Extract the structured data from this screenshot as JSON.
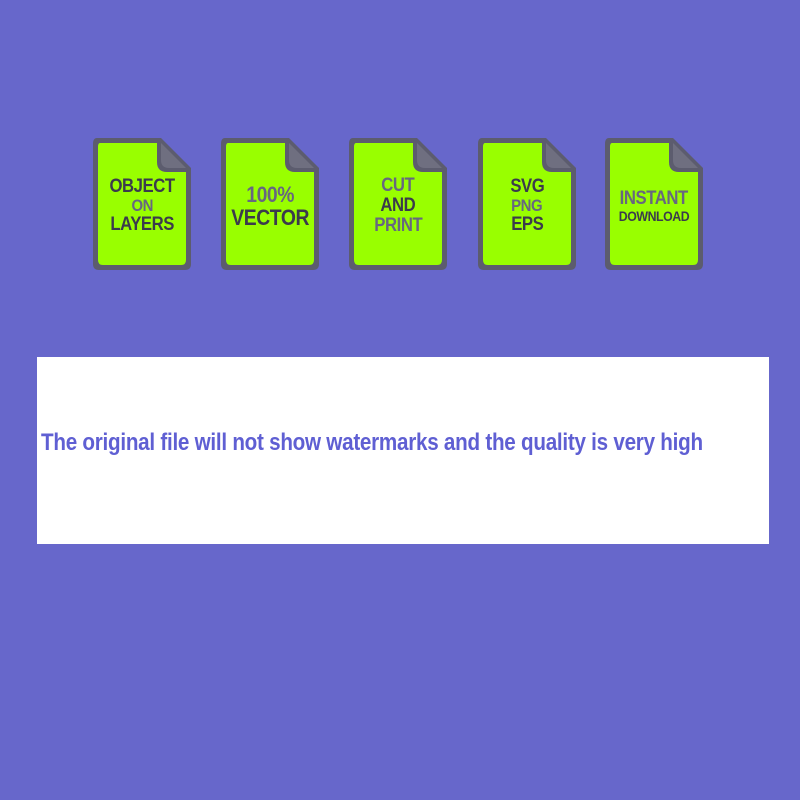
{
  "colors": {
    "background": "#6767cb",
    "card_fill": "#99ff00",
    "card_border": "#5c5c6e",
    "text_dark": "#3b3b4c",
    "text_gray": "#676780",
    "banner_text": "#5f5fd3"
  },
  "cards": [
    {
      "icon": "file-icon",
      "lines": [
        "OBJECT",
        "ON",
        "LAYERS"
      ]
    },
    {
      "icon": "file-icon",
      "lines": [
        "100%",
        "VECTOR"
      ]
    },
    {
      "icon": "file-icon",
      "lines": [
        "CUT",
        "AND",
        "PRINT"
      ]
    },
    {
      "icon": "file-icon",
      "lines": [
        "SVG",
        "PNG",
        "EPS"
      ]
    },
    {
      "icon": "file-icon",
      "lines": [
        "INSTANT",
        "DOWNLOAD"
      ]
    }
  ],
  "banner": {
    "text": "The original file will not show watermarks and the quality is very high"
  }
}
